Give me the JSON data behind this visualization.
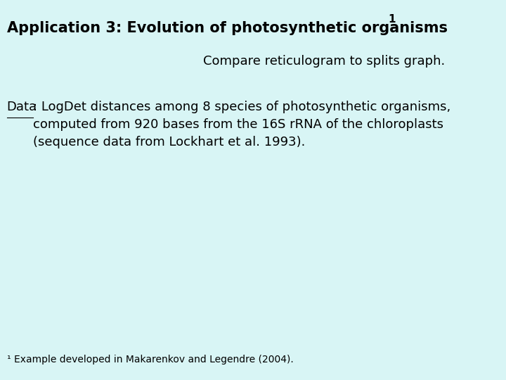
{
  "background_color": "#d8f5f5",
  "title_bold": "Application 3: Evolution of photosynthetic organisms",
  "title_superscript": "1",
  "subtitle": "Compare reticulogram to splits graph.",
  "data_label": "Data",
  "data_text": ": LogDet distances among 8 species of photosynthetic organisms,\ncomputed from 920 bases from the 16S rRNA of the chloroplasts\n(sequence data from Lockhart et al. 1993).",
  "footnote": "¹ Example developed in Makarenkov and Legendre (2004).",
  "title_fontsize": 15,
  "subtitle_fontsize": 13,
  "body_fontsize": 13,
  "footnote_fontsize": 10,
  "text_color": "#000000"
}
